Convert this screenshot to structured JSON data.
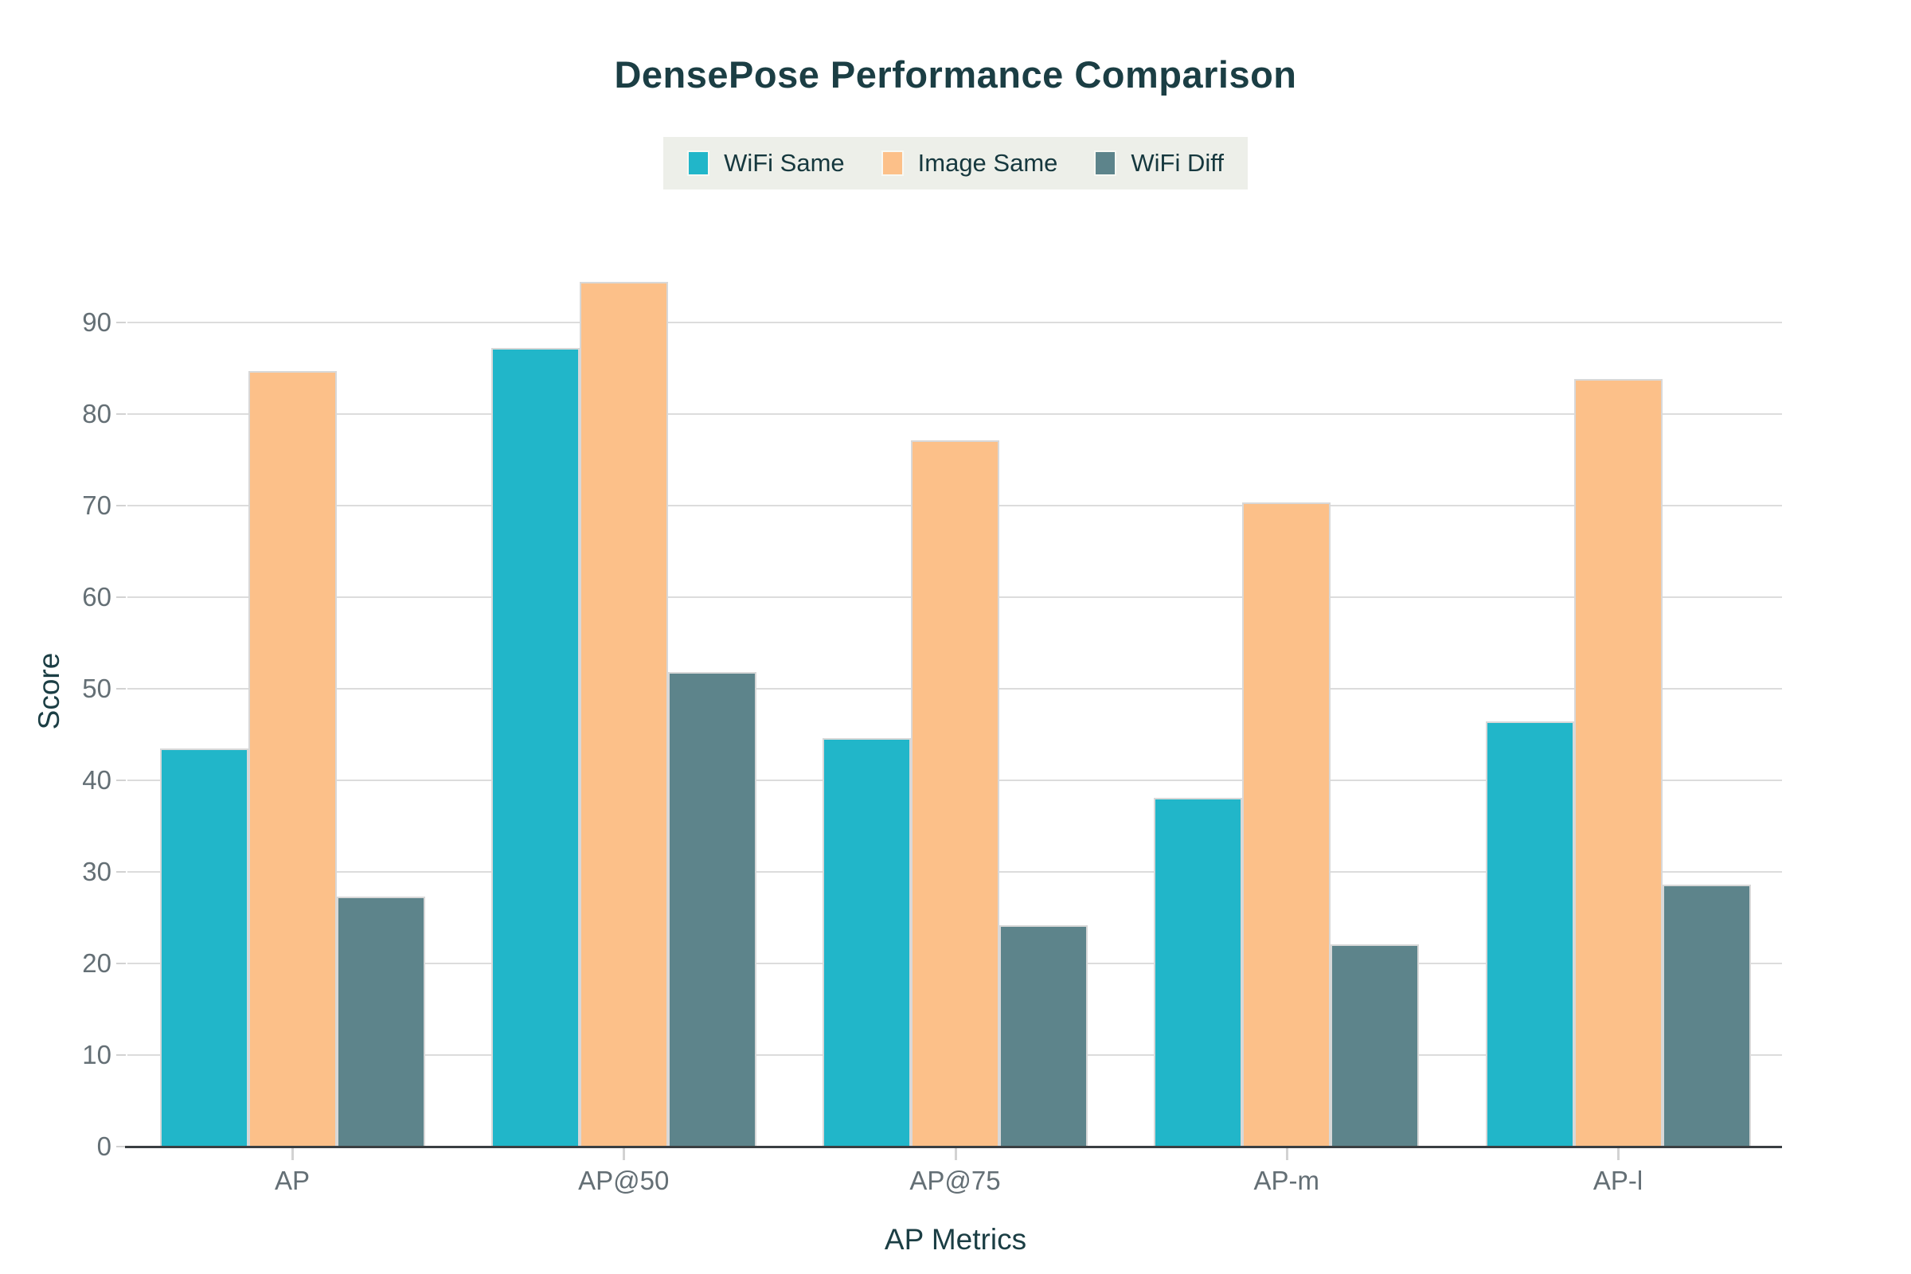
{
  "chart_data": {
    "type": "bar",
    "title": "DensePose Performance Comparison",
    "xlabel": "AP Metrics",
    "ylabel": "Score",
    "categories": [
      "AP",
      "AP@50",
      "AP@75",
      "AP-m",
      "AP-l"
    ],
    "series": [
      {
        "name": "WiFi Same",
        "color": "#21b6c9",
        "values": [
          43.5,
          87.2,
          44.6,
          38.1,
          46.4
        ]
      },
      {
        "name": "Image Same",
        "color": "#fcc089",
        "values": [
          84.7,
          94.4,
          77.1,
          70.3,
          83.8
        ]
      },
      {
        "name": "WiFi Diff",
        "color": "#5d848b",
        "values": [
          27.3,
          51.8,
          24.2,
          22.1,
          28.6
        ]
      }
    ],
    "y_ticks": [
      0,
      10,
      20,
      30,
      40,
      50,
      60,
      70,
      80,
      90
    ],
    "ylim": [
      0,
      95.2
    ],
    "grid": true,
    "legend_position": "top-center"
  },
  "colors": {
    "title_text": "#1b3e44",
    "tick_label_text": "#646f75",
    "legend_background": "#edefe9",
    "gridline": "#dcdcdc",
    "axis_line": "#3a3f42",
    "bar_border": "#d8d8d8"
  }
}
